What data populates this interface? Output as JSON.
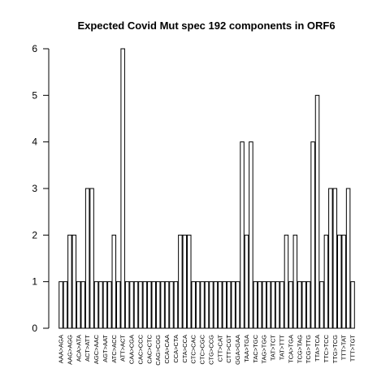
{
  "chart_data": {
    "type": "bar",
    "title": "Expected Covid Mut spec 192 components in ORF6",
    "categories": [
      "AAA>AGA",
      null,
      "AAG>AGG",
      null,
      "ACA>ATA",
      null,
      "ACT>ATT",
      null,
      "AGC>AAC",
      null,
      "AGT>AAT",
      null,
      "ATC>ACC",
      null,
      "ATT>ACT",
      null,
      "CAA>CGA",
      null,
      "CAC>CCC",
      null,
      "CAC>CTC",
      null,
      "CAG>CGG",
      null,
      "CCA>CAA",
      null,
      "CCA>CTA",
      null,
      "CTA>CCA",
      null,
      "CTC>CAC",
      null,
      "CTC>CGC",
      null,
      "CTG>CCG",
      null,
      "CTT>CAT",
      null,
      "CTT>CGT",
      null,
      "GGA>GAA",
      null,
      "TAA>TGA",
      null,
      "TAC>TGC",
      null,
      "TAG>TGG",
      null,
      "TAT>TCT",
      null,
      "TAT>TTT",
      null,
      "TCA>TGA",
      null,
      "TCG>TAG",
      null,
      "TCG>TTG",
      null,
      "TTA>TCA",
      null,
      "TTC>TCC",
      null,
      "TTG>TCG",
      null,
      "TTT>TAT",
      null,
      "TTT>TGT"
    ],
    "values": [
      1,
      1,
      2,
      2,
      1,
      1,
      3,
      3,
      1,
      1,
      1,
      1,
      2,
      1,
      6,
      1,
      1,
      1,
      1,
      1,
      1,
      1,
      1,
      1,
      1,
      1,
      1,
      2,
      2,
      2,
      1,
      1,
      1,
      1,
      1,
      1,
      1,
      1,
      1,
      1,
      1,
      4,
      2,
      4,
      1,
      1,
      1,
      1,
      1,
      1,
      1,
      2,
      1,
      2,
      1,
      1,
      1,
      4,
      5,
      1,
      2,
      3,
      3,
      2,
      2,
      3,
      1
    ],
    "color": "#ffffff",
    "ylim": [
      0,
      6
    ],
    "yticks": [
      0,
      1,
      2,
      3,
      4,
      5,
      6
    ]
  }
}
